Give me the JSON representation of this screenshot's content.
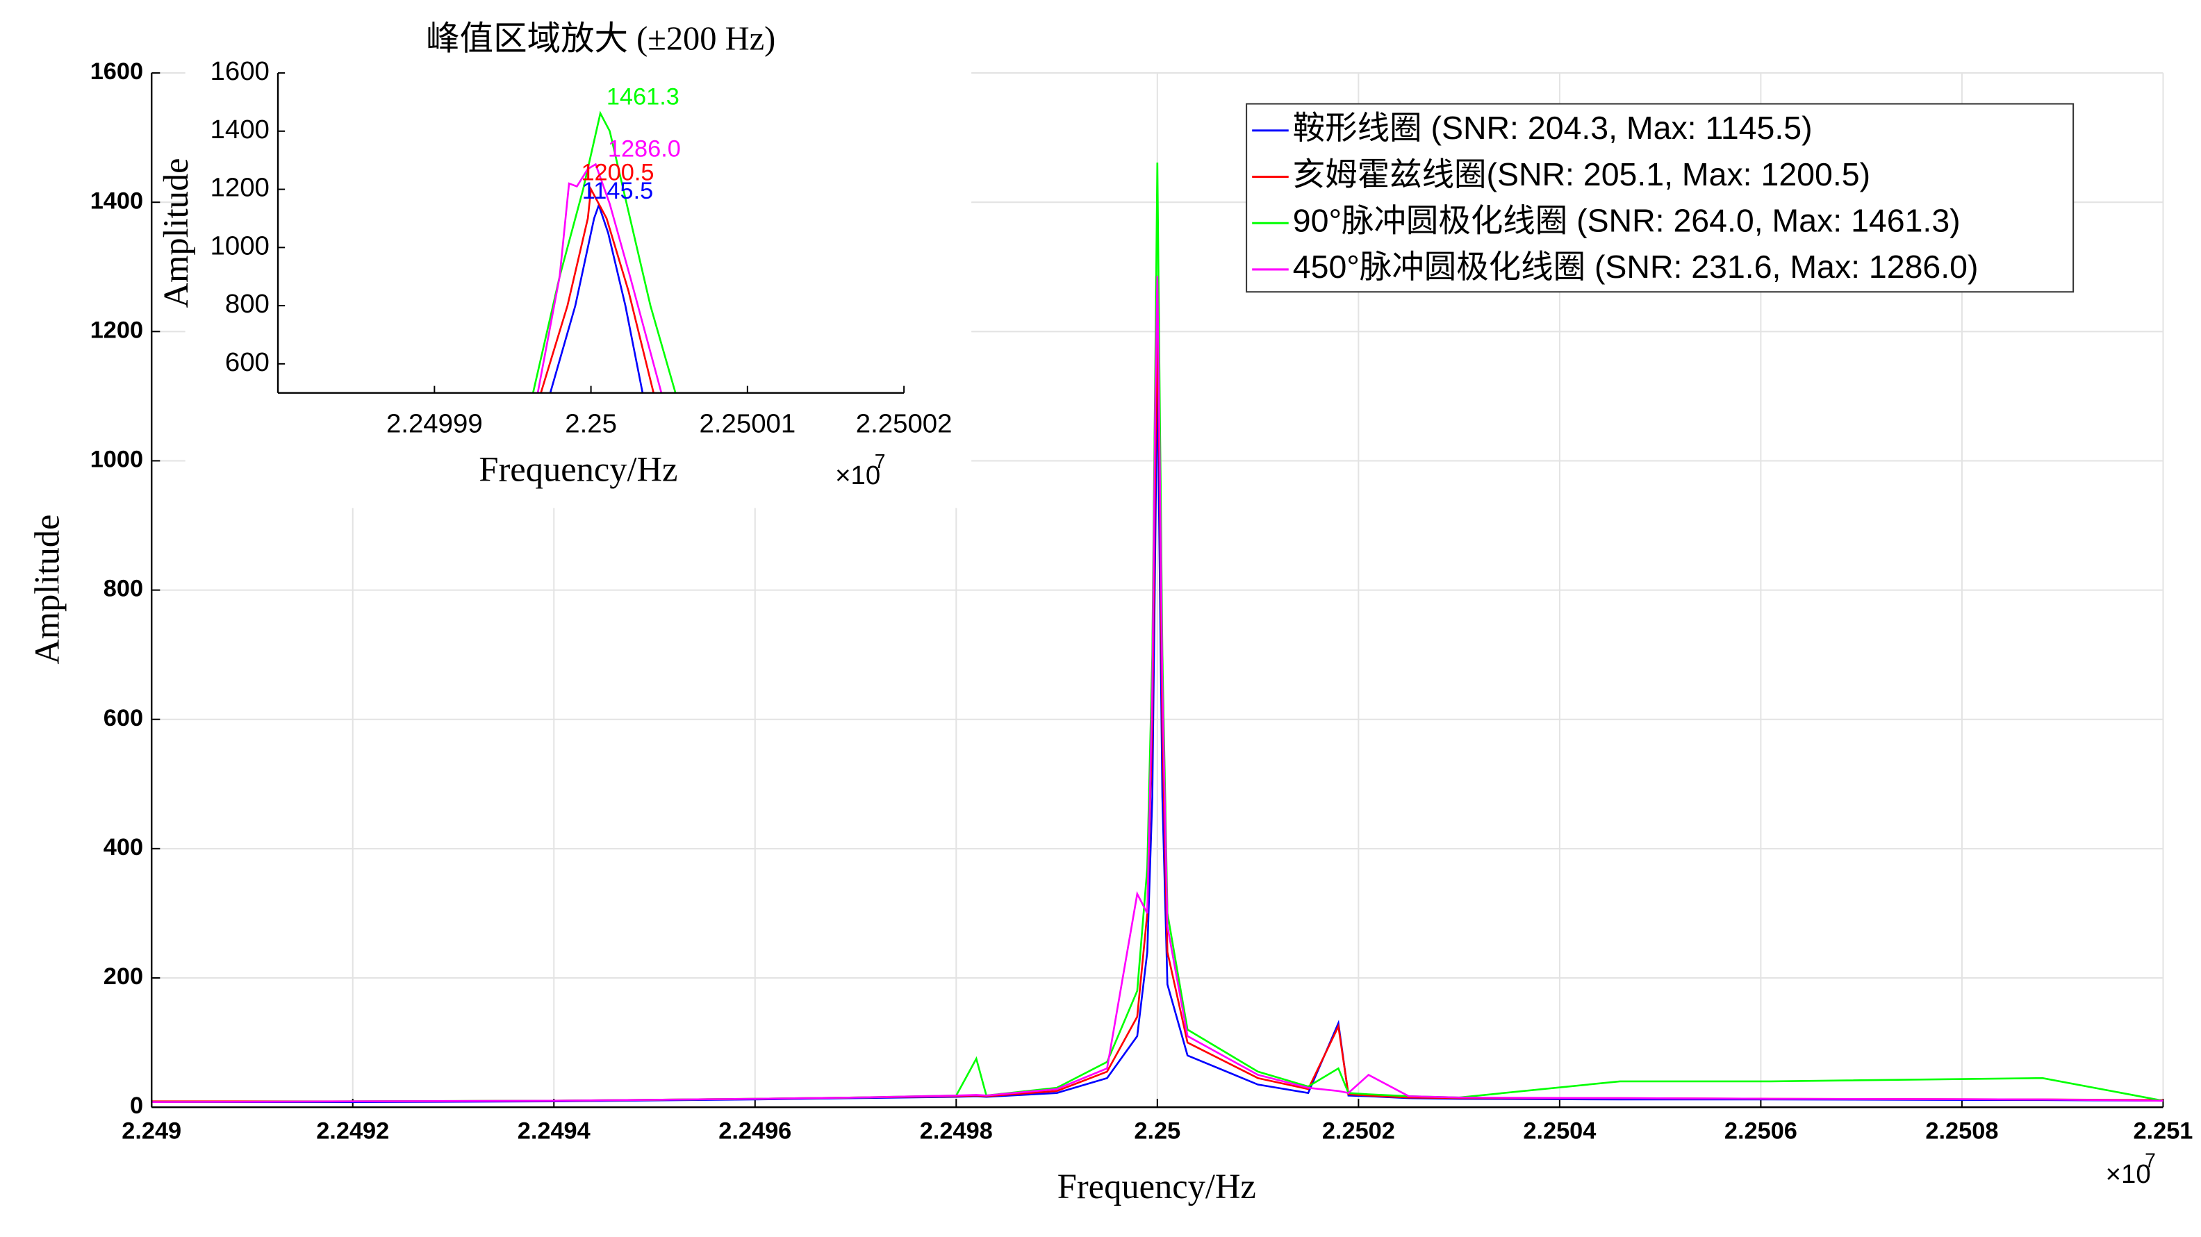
{
  "chart_data": [
    {
      "type": "line",
      "x_label": "Frequency/Hz",
      "y_label": "Amplitude",
      "x_scale_label": {
        "base": "×10",
        "exponent": "7"
      },
      "x": [
        2.249,
        2.2492,
        2.2494,
        2.2496,
        2.2497,
        2.2498,
        2.24982,
        2.24983,
        2.2499,
        2.24995,
        2.24998,
        2.24999,
        2.249995,
        2.249998,
        2.25,
        2.250002,
        2.250005,
        2.25001,
        2.25003,
        2.2501,
        2.25015,
        2.25018,
        2.25019,
        2.25021,
        2.25025,
        2.2503,
        2.25046,
        2.25061,
        2.25088,
        2.251
      ],
      "series": [
        {
          "name": "鞍形线圈 (SNR: 204.3, Max: 1145.5)",
          "color": "#0000ff",
          "values": [
            8,
            8,
            9,
            12,
            14,
            16,
            17,
            16,
            22,
            45,
            110,
            240,
            480,
            880,
            1145.5,
            880,
            480,
            190,
            80,
            35,
            22,
            130,
            18,
            17,
            14,
            13,
            12,
            12,
            11,
            10
          ]
        },
        {
          "name": "亥姆霍兹线圈(SNR: 205.1, Max: 1200.5)",
          "color": "#ff0000",
          "values": [
            9,
            9,
            10,
            13,
            15,
            17,
            18,
            17,
            25,
            55,
            140,
            300,
            600,
            1000,
            1200.5,
            1000,
            580,
            240,
            100,
            45,
            28,
            125,
            20,
            18,
            15,
            14,
            14,
            13,
            12,
            11
          ]
        },
        {
          "name": "90°脉冲圆极化线圈 (SNR: 264.0, Max: 1461.3)",
          "color": "#00ff00",
          "values": [
            8,
            9,
            10,
            13,
            15,
            18,
            75,
            18,
            30,
            70,
            180,
            370,
            700,
            1150,
            1461.3,
            1150,
            700,
            300,
            120,
            55,
            32,
            60,
            22,
            20,
            17,
            15,
            40,
            40,
            45,
            10
          ]
        },
        {
          "name": "450°脉冲圆极化线圈 (SNR: 231.6, Max: 1286.0)",
          "color": "#ff00ff",
          "values": [
            8,
            9,
            10,
            13,
            15,
            18,
            19,
            18,
            28,
            60,
            330,
            300,
            650,
            1100,
            1286,
            1050,
            650,
            280,
            110,
            50,
            30,
            25,
            22,
            50,
            17,
            15,
            14,
            13,
            12,
            10
          ]
        }
      ],
      "xlim": [
        2.249,
        2.251
      ],
      "xticks": [
        2.249,
        2.2492,
        2.2494,
        2.2496,
        2.2498,
        2.25,
        2.2502,
        2.2504,
        2.2506,
        2.2508,
        2.251
      ],
      "ylim": [
        0,
        1600
      ],
      "yticks": [
        0,
        200,
        400,
        600,
        800,
        1000,
        1200,
        1400,
        1600
      ],
      "grid": true,
      "legend": "upper right"
    },
    {
      "type": "line",
      "title": "峰值区域放大 (±200 Hz)",
      "x_label": "Frequency/Hz",
      "y_label": "Amplitude",
      "x_scale_label": {
        "base": "×10",
        "exponent": "7"
      },
      "series": [
        {
          "color": "#0000ff",
          "peak_label": "1145.5",
          "x": [
            2.2499974,
            2.249999,
            2.2500002,
            2.2500005,
            2.2500011,
            2.2500022,
            2.2500033
          ],
          "values": [
            500,
            800,
            1100,
            1145.5,
            1050,
            800,
            500
          ]
        },
        {
          "color": "#ff0000",
          "peak_label": "1200.5",
          "x": [
            2.2499968,
            2.2499985,
            2.2499998,
            2.25,
            2.250001,
            2.2500024,
            2.250004
          ],
          "values": [
            500,
            800,
            1100,
            1200.5,
            1100,
            850,
            500
          ]
        },
        {
          "color": "#00ff00",
          "peak_label": "1461.3",
          "x": [
            2.2499963,
            2.249998,
            2.2499995,
            2.2500006,
            2.2500012,
            2.2500025,
            2.2500038,
            2.2500054
          ],
          "values": [
            500,
            900,
            1200,
            1461.3,
            1400,
            1100,
            800,
            500
          ]
        },
        {
          "color": "#ff00ff",
          "peak_label": "1286.0",
          "x": [
            2.2499966,
            2.249998,
            2.2499986,
            2.2499991,
            2.2499998,
            2.2500003,
            2.2500012,
            2.2500025,
            2.2500045
          ],
          "values": [
            500,
            900,
            1220,
            1210,
            1270,
            1286,
            1150,
            900,
            500
          ]
        }
      ],
      "xlim": [
        2.24998,
        2.25002
      ],
      "xticks": [
        2.24999,
        2.25,
        2.25001,
        2.25002
      ],
      "ylim": [
        500,
        1600
      ],
      "yticks": [
        600,
        800,
        1000,
        1200,
        1400,
        1600
      ],
      "grid": false
    }
  ]
}
